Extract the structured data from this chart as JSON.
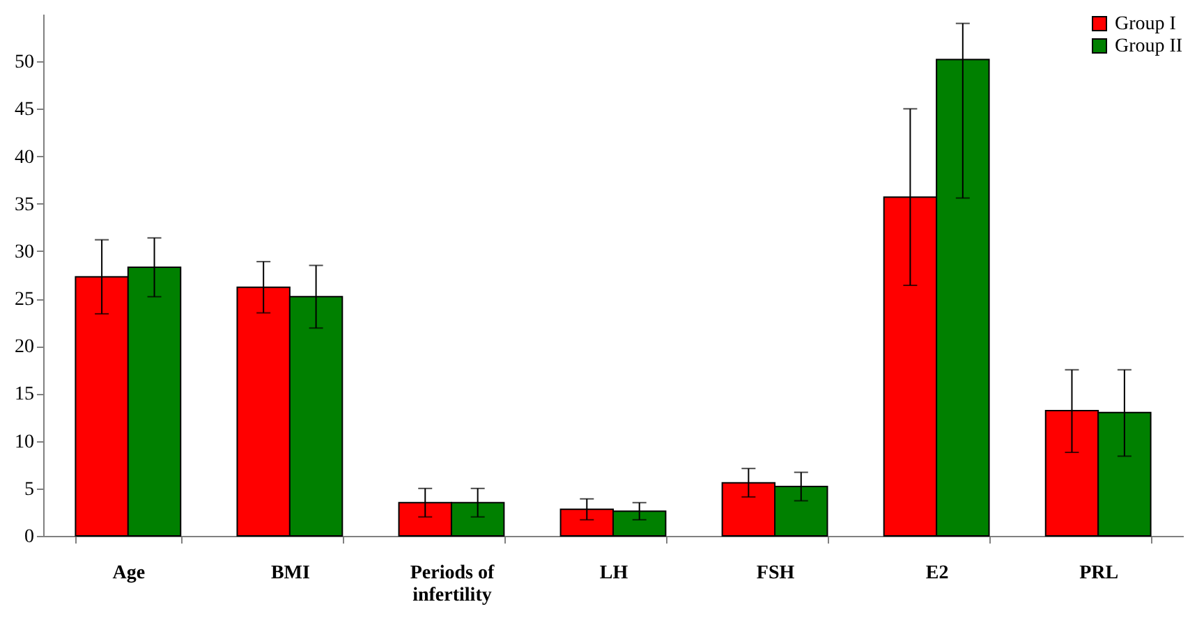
{
  "chart_data": {
    "type": "bar",
    "categories": [
      "Age",
      "BMI",
      "Periods of infertility",
      "LH",
      "FSH",
      "E2",
      "PRL"
    ],
    "series": [
      {
        "name": "Group I",
        "color": "#ff0000",
        "values": [
          27.3,
          26.2,
          3.5,
          2.8,
          5.6,
          35.7,
          13.2
        ],
        "errors": [
          3.9,
          2.7,
          1.5,
          1.1,
          1.5,
          9.3,
          [
            8.8,
            17.5
          ]
        ]
      },
      {
        "name": "Group II",
        "color": "#008000",
        "values": [
          28.3,
          25.2,
          3.5,
          2.6,
          5.2,
          50.2,
          13.0
        ],
        "errors": [
          3.1,
          3.3,
          1.5,
          0.9,
          1.5,
          [
            35.6,
            54.0
          ],
          [
            8.4,
            17.5
          ]
        ]
      }
    ],
    "ylim": [
      0,
      55
    ],
    "yticks": [
      0,
      5,
      10,
      15,
      20,
      25,
      30,
      35,
      40,
      45,
      50
    ],
    "grid": false,
    "legend": "top right"
  }
}
